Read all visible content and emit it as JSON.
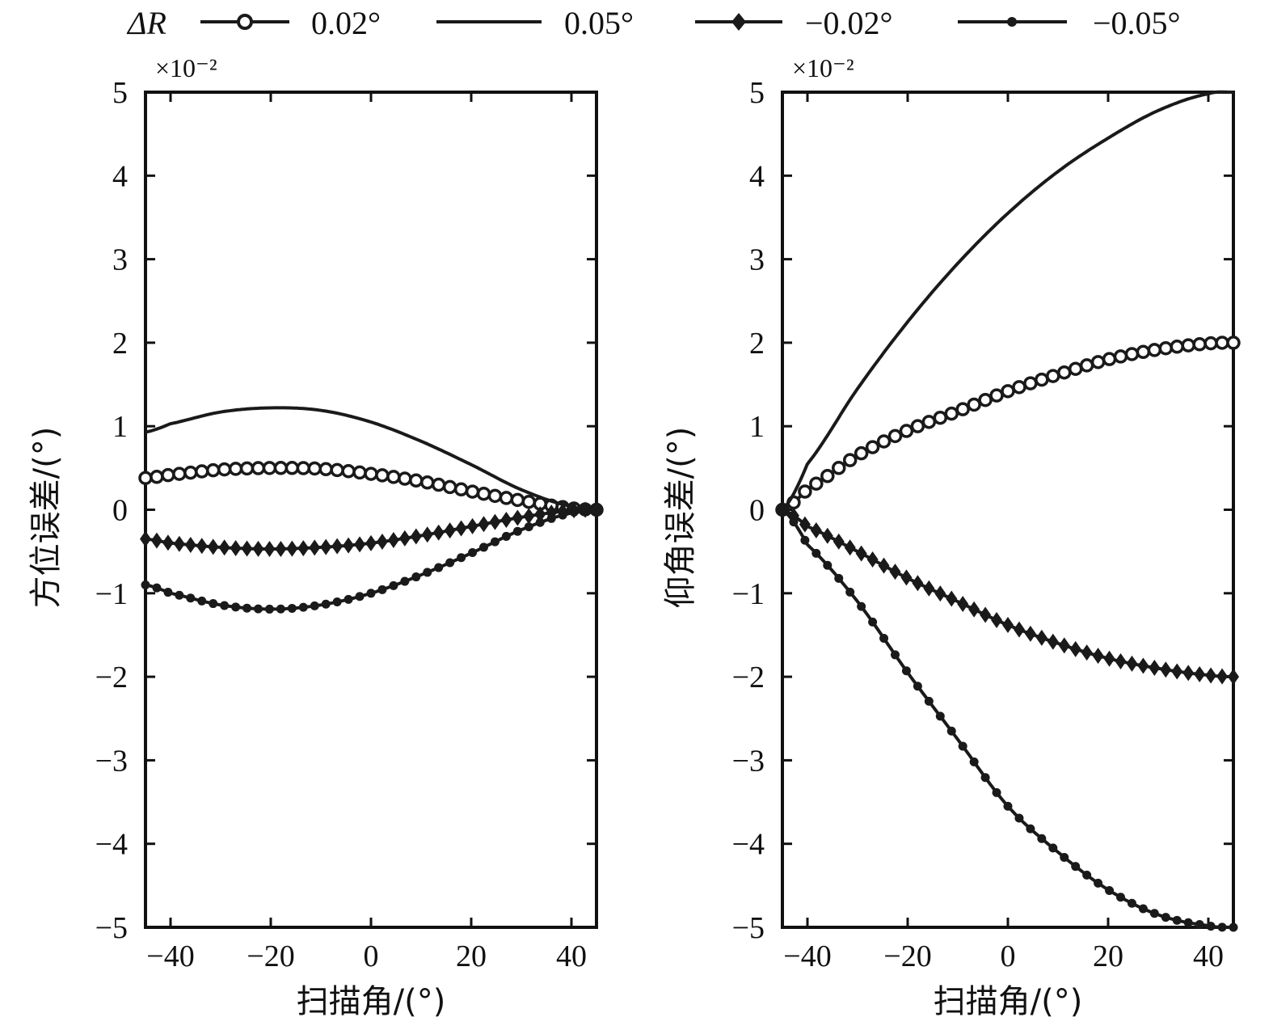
{
  "legend": {
    "symbol": "ΔR",
    "entries": [
      {
        "label": "0.02°",
        "marker": "open-circle"
      },
      {
        "label": "0.05°",
        "marker": "none"
      },
      {
        "label": "−0.02°",
        "marker": "diamond"
      },
      {
        "label": "−0.05°",
        "marker": "dot"
      }
    ]
  },
  "colors": {
    "line": "#1a1a1a",
    "axis": "#111111"
  },
  "chart_data": [
    {
      "type": "line",
      "ylabel": "方位误差/(°)",
      "xlabel": "扫描角/(°)",
      "y_exponent": "×10⁻²",
      "xlim": [
        -45,
        45
      ],
      "ylim": [
        -5,
        5
      ],
      "xticks": [
        -40,
        -20,
        0,
        20,
        40
      ],
      "xtick_labels": [
        "−40",
        "−20",
        "0",
        "20",
        "40"
      ],
      "yticks": [
        5,
        4,
        3,
        2,
        1,
        0,
        -1,
        -2,
        -3,
        -4,
        -5
      ],
      "ytick_labels": [
        "5",
        "4",
        "3",
        "2",
        "1",
        "0",
        "−1",
        "−2",
        "−3",
        "−4",
        "−5"
      ],
      "series": [
        {
          "name": "0.02°",
          "marker": "open-circle",
          "x": [
            -45,
            -40,
            -30,
            -20,
            -10,
            0,
            10,
            20,
            30,
            40,
            45
          ],
          "y": [
            0.38,
            0.42,
            0.48,
            0.5,
            0.49,
            0.43,
            0.34,
            0.22,
            0.11,
            0.02,
            0.0
          ]
        },
        {
          "name": "0.05°",
          "marker": "none",
          "x": [
            -45,
            -40,
            -30,
            -20,
            -10,
            0,
            10,
            20,
            30,
            40,
            45
          ],
          "y": [
            0.93,
            1.03,
            1.17,
            1.22,
            1.19,
            1.05,
            0.82,
            0.54,
            0.24,
            0.04,
            0.0
          ]
        },
        {
          "name": "−0.02°",
          "marker": "diamond",
          "x": [
            -45,
            -40,
            -30,
            -20,
            -10,
            0,
            10,
            20,
            30,
            40,
            45
          ],
          "y": [
            -0.35,
            -0.4,
            -0.45,
            -0.47,
            -0.45,
            -0.4,
            -0.31,
            -0.2,
            -0.09,
            -0.01,
            0.0
          ]
        },
        {
          "name": "−0.05°",
          "marker": "dot",
          "x": [
            -45,
            -40,
            -30,
            -20,
            -10,
            0,
            10,
            20,
            30,
            40,
            45
          ],
          "y": [
            -0.9,
            -1.0,
            -1.14,
            -1.19,
            -1.14,
            -1.0,
            -0.78,
            -0.52,
            -0.24,
            -0.04,
            0.0
          ]
        }
      ]
    },
    {
      "type": "line",
      "ylabel": "仰角误差/(°)",
      "xlabel": "扫描角/(°)",
      "y_exponent": "×10⁻²",
      "xlim": [
        -45,
        45
      ],
      "ylim": [
        -5,
        5
      ],
      "xticks": [
        -40,
        -20,
        0,
        20,
        40
      ],
      "xtick_labels": [
        "−40",
        "−20",
        "0",
        "20",
        "40"
      ],
      "yticks": [
        5,
        4,
        3,
        2,
        1,
        0,
        -1,
        -2,
        -3,
        -4,
        -5
      ],
      "ytick_labels": [
        "5",
        "4",
        "3",
        "2",
        "1",
        "0",
        "−1",
        "−2",
        "−3",
        "−4",
        "−5"
      ],
      "series": [
        {
          "name": "0.02°",
          "marker": "open-circle",
          "x": [
            -45,
            -40,
            -30,
            -20,
            -10,
            0,
            10,
            20,
            30,
            40,
            45
          ],
          "y": [
            0.0,
            0.25,
            0.65,
            0.95,
            1.18,
            1.42,
            1.62,
            1.8,
            1.92,
            1.99,
            2.0
          ]
        },
        {
          "name": "0.05°",
          "marker": "none",
          "x": [
            -45,
            -40,
            -30,
            -20,
            -10,
            0,
            10,
            20,
            30,
            40,
            45
          ],
          "y": [
            0.0,
            0.55,
            1.45,
            2.25,
            2.95,
            3.55,
            4.05,
            4.45,
            4.78,
            4.98,
            5.0
          ]
        },
        {
          "name": "−0.02°",
          "marker": "diamond",
          "x": [
            -45,
            -40,
            -30,
            -20,
            -10,
            0,
            10,
            20,
            30,
            40,
            45
          ],
          "y": [
            0.0,
            -0.2,
            -0.5,
            -0.82,
            -1.1,
            -1.38,
            -1.6,
            -1.78,
            -1.9,
            -1.98,
            -2.0
          ]
        },
        {
          "name": "−0.05°",
          "marker": "dot",
          "x": [
            -45,
            -40,
            -30,
            -20,
            -10,
            0,
            10,
            20,
            30,
            40,
            45
          ],
          "y": [
            0.0,
            -0.42,
            -1.1,
            -1.95,
            -2.75,
            -3.55,
            -4.1,
            -4.55,
            -4.85,
            -4.98,
            -5.0
          ]
        }
      ]
    }
  ]
}
